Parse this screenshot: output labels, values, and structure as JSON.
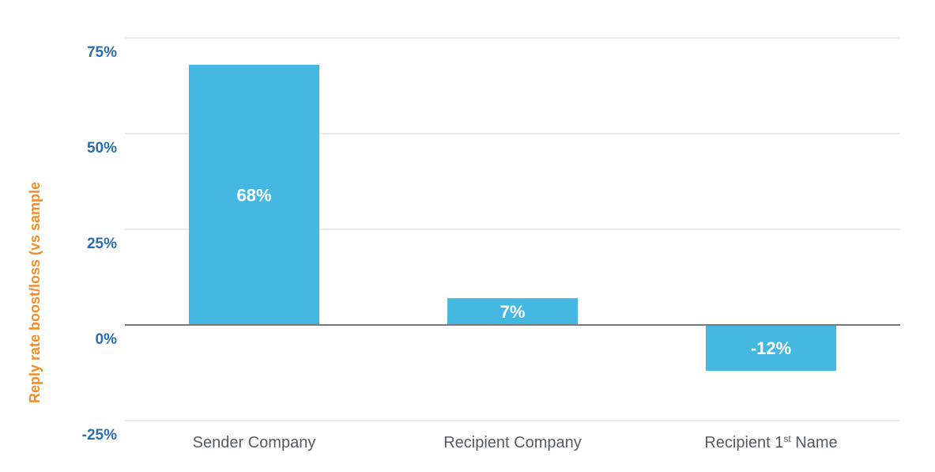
{
  "chart_data": {
    "type": "bar",
    "categories": [
      "Sender Company",
      "Recipient Company",
      "Recipient 1st Name"
    ],
    "values": [
      68,
      7,
      -12
    ],
    "data_labels": [
      "68%",
      "7%",
      "-12%"
    ],
    "title": "",
    "xlabel": "",
    "ylabel": "Reply rate boost/loss (vs sample",
    "ylim": [
      -25,
      75
    ],
    "yticks": [
      -25,
      0,
      25,
      50,
      75
    ],
    "ytick_labels": [
      "-25%",
      "0%",
      "25%",
      "50%",
      "75%"
    ],
    "grid": true,
    "legend": "none",
    "colors": {
      "bar": "#45b8e2",
      "tick_text": "#2a6db0",
      "ylabel_text": "#f28c28",
      "category_text": "#555a60",
      "gridline": "#d6d6d6",
      "zero_line": "#7a7a7a"
    }
  }
}
